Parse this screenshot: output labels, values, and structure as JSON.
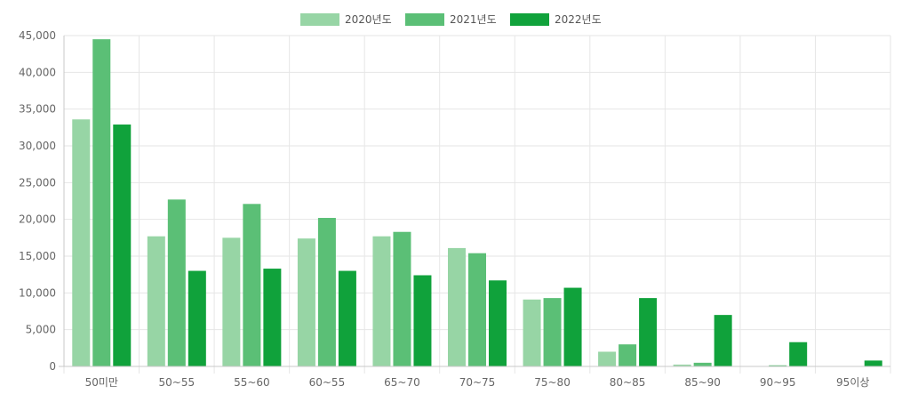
{
  "chart_data": {
    "type": "bar",
    "title": "",
    "xlabel": "",
    "ylabel": "",
    "ylim": [
      0,
      45000
    ],
    "yticks": [
      "0",
      "5,000",
      "10,000",
      "15,000",
      "20,000",
      "25,000",
      "30,000",
      "35,000",
      "40,000",
      "45,000"
    ],
    "legend_position": "top",
    "grid": true,
    "categories": [
      "50미만",
      "50~55",
      "55~60",
      "60~55",
      "65~70",
      "70~75",
      "75~80",
      "80~85",
      "85~90",
      "90~95",
      "95이상"
    ],
    "series": [
      {
        "name": "2020년도",
        "color": "#97d5a5",
        "values": [
          33600,
          17700,
          17500,
          17400,
          17700,
          16100,
          9100,
          2000,
          250,
          60,
          0
        ]
      },
      {
        "name": "2021년도",
        "color": "#5bbf76",
        "values": [
          44500,
          22700,
          22100,
          20200,
          18300,
          15400,
          9300,
          3000,
          500,
          150,
          0
        ]
      },
      {
        "name": "2022년도",
        "color": "#10a23b",
        "values": [
          32900,
          13000,
          13300,
          13000,
          12400,
          11700,
          10700,
          9300,
          7000,
          3300,
          800
        ]
      }
    ]
  }
}
